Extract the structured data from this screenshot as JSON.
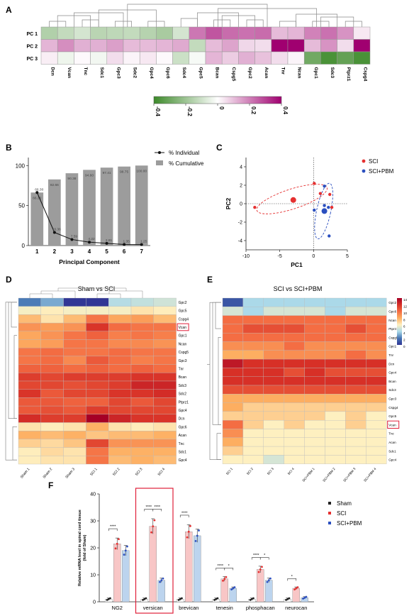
{
  "panels": {
    "A": "A",
    "B": "B",
    "C": "C",
    "D": "D",
    "E": "E",
    "F": "F"
  },
  "panel_a": {
    "rows": [
      "PC 1",
      "PC 2",
      "PC 3"
    ],
    "cols": [
      "Dcn",
      "Vcan",
      "Tnc",
      "Sdc1",
      "Gpc3",
      "Sdc2",
      "Gpc4",
      "Gpc6",
      "Sdc4",
      "Gpc5",
      "Bcan",
      "Cspg5",
      "Gpc2",
      "Acan",
      "Tnr",
      "Ncan",
      "Gpc1",
      "Sdc3",
      "Ptprz1",
      "Cspg4"
    ],
    "values": [
      [
        -0.18,
        -0.14,
        -0.1,
        -0.16,
        -0.15,
        -0.14,
        -0.17,
        -0.2,
        -0.1,
        0.24,
        0.3,
        0.26,
        0.25,
        0.26,
        0.12,
        0.13,
        0.22,
        0.25,
        0.19,
        0.04
      ],
      [
        0.13,
        0.2,
        0.14,
        0.14,
        0.17,
        0.12,
        0.12,
        0.13,
        0.15,
        -0.14,
        0.12,
        0.16,
        0.07,
        0.06,
        0.45,
        0.47,
        0.12,
        0.19,
        0.06,
        0.46
      ],
      [
        0.03,
        -0.04,
        0.01,
        -0.03,
        0.06,
        0.02,
        0.04,
        0.01,
        -0.12,
        -0.02,
        0.13,
        0.09,
        0.14,
        0.11,
        0.06,
        0.02,
        -0.33,
        -0.42,
        -0.36,
        -0.42
      ]
    ],
    "colorbar_ticks": [
      "-0.4",
      "-0.2",
      "0",
      "0.2",
      "0.4"
    ],
    "neg_color": "#3d8a2a",
    "pos_color": "#a00070"
  },
  "panel_b": {
    "legend": [
      "% Individual",
      "% Cumulative"
    ],
    "xlabel": "Principal Component",
    "x_ticks": [
      "1",
      "2",
      "3",
      "4",
      "5",
      "6",
      "7"
    ],
    "y_ticks": [
      "0",
      "50",
      "100"
    ],
    "cumulative": [
      66.3,
      82.66,
      90.38,
      94.6,
      97.41,
      98.75,
      100.0
    ],
    "cumulative_labels": [
      "66.30",
      "82.66",
      "90.38",
      "94.60",
      "97.41",
      "98.75",
      "100.00"
    ],
    "individual": [
      66.3,
      16.36,
      7.59,
      4.22,
      2.81,
      1.35,
      1.25
    ],
    "individual_labels": [
      "66.30",
      "16.36",
      "7.59",
      "4.22",
      "2.81",
      "1.35",
      "1.25"
    ]
  },
  "panel_c": {
    "xlabel": "PC1",
    "ylabel": "PC2",
    "x_ticks": [
      "-10",
      "-5",
      "0",
      "5"
    ],
    "y_ticks": [
      "4",
      "2",
      "0",
      "-2",
      "-4"
    ],
    "legend": [
      "SCI",
      "SCI+PBM"
    ],
    "sci_color": "#e53030",
    "pbm_color": "#2b4fbf",
    "sci_points": [
      [
        -8.7,
        -0.4
      ],
      [
        0.1,
        2.2
      ],
      [
        1.0,
        1.1
      ],
      [
        2.4,
        1.0
      ],
      [
        2.7,
        -0.4
      ]
    ],
    "sci_center": [
      -3.0,
      0.4
    ],
    "pbm_points": [
      [
        1.6,
        1.9
      ],
      [
        0.1,
        -0.7
      ],
      [
        1.6,
        -0.2
      ],
      [
        2.3,
        -3.5
      ],
      [
        2.2,
        -0.4
      ]
    ],
    "pbm_center": [
      1.6,
      -0.8
    ]
  },
  "panel_d": {
    "title": "Sham vs SCI",
    "genes": [
      "Gpc2",
      "Gpc5",
      "Cspg4",
      "Vcan",
      "Gpc1",
      "Ncan",
      "Cspg5",
      "Gpc3",
      "Tnr",
      "Bcan",
      "Sdc3",
      "Sdc2",
      "Ptprz1",
      "Gpc4",
      "Dcn",
      "Gpc6",
      "Acan",
      "Tnc",
      "Sdc1",
      "Gpc4"
    ],
    "highlight": "Vcan",
    "samples": [
      "Sham 1",
      "Sham 2",
      "Sham 3",
      "SCI 1",
      "SCI 2",
      "SCI 3",
      "SCI 4"
    ],
    "values": [
      [
        -1.6,
        -1.3,
        -2.3,
        -2.3,
        -0.9,
        -0.8,
        -0.7
      ],
      [
        -0.4,
        -0.3,
        -0.4,
        -0.4,
        -0.4,
        -0.2,
        -0.3
      ],
      [
        0.2,
        -0.2,
        0.2,
        0.9,
        0.4,
        0.5,
        0.2
      ],
      [
        0.6,
        0.5,
        0.6,
        1.6,
        1.0,
        0.9,
        0.9
      ],
      [
        0.4,
        0.6,
        0.9,
        1.1,
        0.8,
        0.9,
        0.8
      ],
      [
        0.4,
        0.5,
        0.9,
        0.9,
        0.7,
        0.7,
        0.6
      ],
      [
        0.9,
        1.0,
        0.9,
        0.9,
        1.0,
        0.9,
        0.9
      ],
      [
        0.9,
        1.0,
        0.7,
        1.2,
        1.0,
        0.8,
        0.9
      ],
      [
        1.1,
        1.1,
        1.0,
        1.1,
        1.0,
        1.1,
        1.0
      ],
      [
        1.5,
        1.4,
        1.5,
        1.5,
        1.5,
        1.6,
        1.6
      ],
      [
        1.4,
        1.4,
        1.3,
        1.4,
        1.5,
        1.8,
        1.8
      ],
      [
        1.6,
        1.2,
        1.4,
        1.4,
        1.6,
        1.6,
        1.7
      ],
      [
        1.2,
        1.2,
        1.1,
        1.1,
        1.4,
        1.2,
        1.4
      ],
      [
        1.2,
        1.3,
        1.2,
        1.5,
        1.4,
        1.4,
        1.4
      ],
      [
        1.7,
        1.5,
        1.5,
        2.3,
        1.8,
        1.6,
        1.6
      ],
      [
        -0.2,
        -0.3,
        -0.2,
        0.3,
        -0.2,
        -0.3,
        -0.2
      ],
      [
        0.3,
        0.2,
        0.3,
        0.1,
        0.2,
        0.2,
        0.3
      ],
      [
        0.0,
        -0.1,
        0.1,
        1.4,
        0.6,
        0.6,
        0.6
      ],
      [
        -0.3,
        -0.1,
        -0.2,
        0.9,
        0.3,
        0.3,
        0.3
      ],
      [
        -0.3,
        -0.2,
        -0.2,
        0.9,
        0.2,
        0.3,
        0.2
      ]
    ]
  },
  "panel_e": {
    "title": "SCI vs SCI+PBM",
    "genes": [
      "Gpc2",
      "Gpc6",
      "Ncan",
      "Ptprz1",
      "Cspg5",
      "Gpc1",
      "Tnr",
      "Dcn",
      "Gpc4",
      "Bcan",
      "Sdc3",
      "Gpc3",
      "Cspg4",
      "Gpc5",
      "Vcan",
      "Tnc",
      "Acan",
      "Sdc1",
      "Gpc4"
    ],
    "highlight": "Vcan",
    "samples": [
      "SCI 1",
      "SCI 2",
      "SCI 3",
      "SCI 4",
      "SCI+PBM 1",
      "SCI+PBM 2",
      "SCI+PBM 3",
      "SCI+PBM 4"
    ],
    "colorbar_ticks": [
      "14",
      "12",
      "10",
      "8",
      "6",
      "4",
      "2",
      "0"
    ],
    "values": [
      [
        1,
        4,
        4,
        4,
        4,
        4,
        4,
        4
      ],
      [
        5,
        4,
        5,
        5,
        5,
        4,
        5,
        5
      ],
      [
        10,
        10,
        10,
        10,
        10,
        10,
        10,
        10
      ],
      [
        10,
        11,
        11,
        11,
        10,
        10,
        11,
        10
      ],
      [
        10,
        10,
        10,
        10,
        10,
        10,
        10,
        10
      ],
      [
        9,
        9,
        9,
        10,
        9,
        9,
        9,
        9
      ],
      [
        8,
        8,
        9,
        9,
        9,
        9,
        10,
        9
      ],
      [
        13,
        12,
        12,
        12,
        12,
        12,
        12,
        12
      ],
      [
        12,
        12,
        12,
        11,
        12,
        11,
        11,
        11
      ],
      [
        12,
        12,
        12,
        12,
        12,
        12,
        12,
        12
      ],
      [
        11,
        11,
        11,
        11,
        11,
        11,
        11,
        11
      ],
      [
        8,
        8,
        8,
        8,
        8,
        8,
        8,
        8
      ],
      [
        8,
        7,
        7,
        7,
        7,
        7,
        7,
        7
      ],
      [
        7,
        7,
        7,
        7,
        7,
        6,
        7,
        6
      ],
      [
        10,
        7,
        6,
        7,
        6,
        6,
        7,
        6
      ],
      [
        9,
        6,
        6,
        6,
        6,
        6,
        6,
        6
      ],
      [
        8,
        6,
        6,
        6,
        6,
        6,
        6,
        6
      ],
      [
        7,
        6,
        6,
        6,
        6,
        6,
        6,
        6
      ],
      [
        6,
        6,
        5,
        6,
        6,
        6,
        6,
        6
      ]
    ]
  },
  "panel_f": {
    "ylabel_lines": [
      "Relative mRNA level in spinal cord tissue",
      "(fold of Sham)"
    ],
    "y_ticks": [
      "0",
      "10",
      "20",
      "30",
      "40"
    ],
    "groups": [
      "NG2",
      "versican",
      "brevican",
      "tenesin",
      "phosphacan",
      "neurocan"
    ],
    "highlight_group": "versican",
    "legend": [
      "Sham",
      "SCI",
      "SCI+PBM"
    ],
    "sham": [
      1.0,
      1.0,
      1.0,
      1.0,
      1.0,
      1.0
    ],
    "sci": [
      21.5,
      28.0,
      26.0,
      8.5,
      12.0,
      5.0
    ],
    "sci_pbm": [
      19.0,
      8.0,
      24.5,
      5.0,
      8.0,
      1.5
    ],
    "sig_marks": [
      {
        "group": 0,
        "pair": "sham-sci",
        "label": "****"
      },
      {
        "group": 1,
        "pair": "sham-sci",
        "label": "****"
      },
      {
        "group": 1,
        "pair": "sci-pbm",
        "label": "****"
      },
      {
        "group": 2,
        "pair": "sham-sci",
        "label": "****"
      },
      {
        "group": 3,
        "pair": "sham-sci",
        "label": "****"
      },
      {
        "group": 3,
        "pair": "sci-pbm",
        "label": "*"
      },
      {
        "group": 4,
        "pair": "sham-sci",
        "label": "****"
      },
      {
        "group": 4,
        "pair": "sci-pbm",
        "label": "*"
      },
      {
        "group": 5,
        "pair": "sham-sci",
        "label": "*"
      }
    ]
  }
}
